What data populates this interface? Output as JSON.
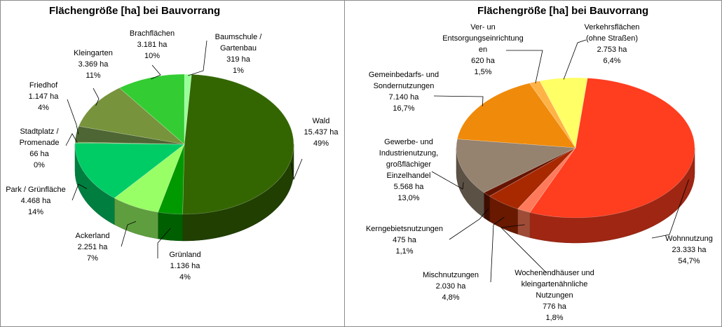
{
  "chart_data": [
    {
      "type": "pie",
      "title": "Flächengröße [ha] bei Bauvorrang",
      "slices": [
        {
          "label": "Wald",
          "value": 15437,
          "value_text": "15.437 ha",
          "pct_text": "49%",
          "color": "#336600"
        },
        {
          "label": "Grünland",
          "value": 1136,
          "value_text": "1.136 ha",
          "pct_text": "4%",
          "color": "#009900"
        },
        {
          "label": "Ackerland",
          "value": 2251,
          "value_text": "2.251 ha",
          "pct_text": "7%",
          "color": "#99ff66"
        },
        {
          "label": "Park / Grünfläche",
          "value": 4468,
          "value_text": "4.468 ha",
          "pct_text": "14%",
          "color": "#00cc66"
        },
        {
          "label": "Stadtplatz / Promenade",
          "value": 66,
          "value_text": "66 ha",
          "pct_text": "0%",
          "color": "#669933"
        },
        {
          "label": "Friedhof",
          "value": 1147,
          "value_text": "1.147 ha",
          "pct_text": "4%",
          "color": "#4d6633"
        },
        {
          "label": "Kleingarten",
          "value": 3369,
          "value_text": "3.369 ha",
          "pct_text": "11%",
          "color": "#77933c"
        },
        {
          "label": "Brachflächen",
          "value": 3181,
          "value_text": "3.181 ha",
          "pct_text": "10%",
          "color": "#33cc33"
        },
        {
          "label": "Baumschule / Gartenbau",
          "value": 319,
          "value_text": "319 ha",
          "pct_text": "1%",
          "color": "#99ff99"
        }
      ]
    },
    {
      "type": "pie",
      "title": "Flächengröße [ha] bei Bauvorrang",
      "slices": [
        {
          "label": "Wohnnutzung",
          "value": 23333,
          "value_text": "23.333 ha",
          "pct_text": "54,7%",
          "color": "#ff3d1f"
        },
        {
          "label": "Wochenendhäuser und kleingartenähnliche Nutzungen",
          "value": 776,
          "value_text": "776 ha",
          "pct_text": "1,8%",
          "color": "#ff7a5a"
        },
        {
          "label": "Mischnutzungen",
          "value": 2030,
          "value_text": "2.030 ha",
          "pct_text": "4,8%",
          "color": "#a82800"
        },
        {
          "label": "Kerngebietsnutzungen",
          "value": 475,
          "value_text": "475 ha",
          "pct_text": "1,1%",
          "color": "#661400"
        },
        {
          "label": "Gewerbe- und Industrienutzung, großflächiger Einzelhandel",
          "value": 5568,
          "value_text": "5.568 ha",
          "pct_text": "13,0%",
          "color": "#95826f"
        },
        {
          "label": "Gemeinbedarfs- und Sondernutzungen",
          "value": 7140,
          "value_text": "7.140 ha",
          "pct_text": "16,7%",
          "color": "#f08a0a"
        },
        {
          "label": "Ver- und Entsorgungseinrichtungen",
          "value": 620,
          "value_text": "620 ha",
          "pct_text": "1,5%",
          "color": "#ffb347"
        },
        {
          "label": "Verkehrsflächen (ohne Straßen)",
          "value": 2753,
          "value_text": "2.753 ha",
          "pct_text": "6,4%",
          "color": "#ffff66"
        }
      ]
    }
  ]
}
